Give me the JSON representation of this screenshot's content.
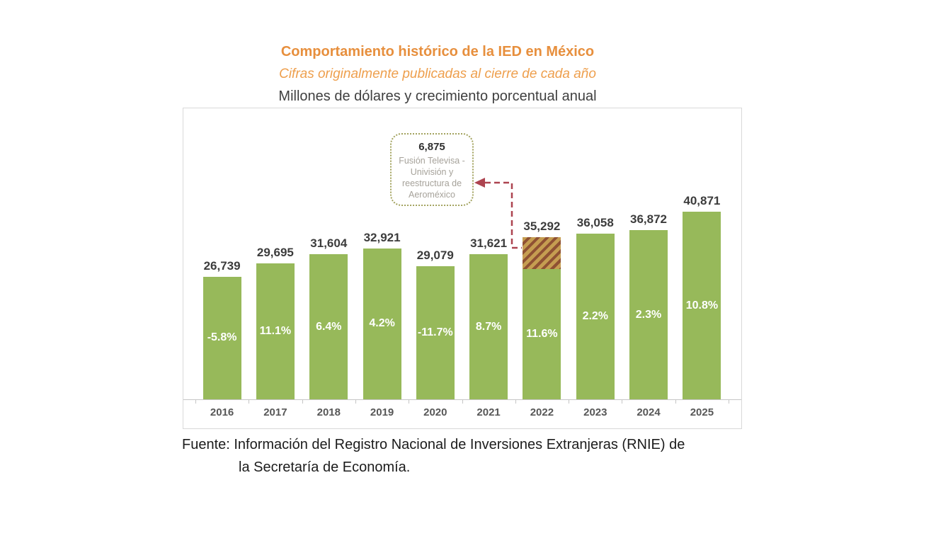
{
  "chart_data": {
    "type": "bar",
    "title": "Comportamiento histórico de la IED en México",
    "subtitle": "Cifras originalmente publicadas al cierre de cada año",
    "units": "Millones de dólares y crecimiento porcentual anual",
    "categories": [
      "2016",
      "2017",
      "2018",
      "2019",
      "2020",
      "2021",
      "2022",
      "2023",
      "2024",
      "2025"
    ],
    "values": [
      26739,
      29695,
      31604,
      32921,
      29079,
      31621,
      35292,
      36058,
      36872,
      40871
    ],
    "value_labels": [
      "26,739",
      "29,695",
      "31,604",
      "32,921",
      "29,079",
      "31,621",
      "35,292",
      "36,058",
      "36,872",
      "40,871"
    ],
    "growth_labels": [
      "-5.8%",
      "11.1%",
      "6.4%",
      "4.2%",
      "-11.7%",
      "8.7%",
      "11.6%",
      "2.2%",
      "2.3%",
      "10.8%"
    ],
    "ylim": [
      0,
      43000
    ],
    "grid": false,
    "legend": "none",
    "annotation": {
      "value": "6,875",
      "value_numeric": 6875,
      "lines": [
        "Fusión Televisa -",
        "Univisión y",
        "reestructura de",
        "Aeroméxico"
      ],
      "target_year": "2022"
    },
    "colors": {
      "bar": "#97b95a",
      "hatch_base": "#c59d51",
      "hatch_stripe": "#8f5133",
      "arrow": "#ad4450",
      "callout_border": "#a3a35f",
      "title_accent": "#e78f3d",
      "subtitle_accent": "#ee9f4d"
    }
  },
  "footer": {
    "source_line1": "Fuente: Información del Registro Nacional de Inversiones Extranjeras (RNIE) de",
    "source_line2": "la Secretaría de Economía."
  }
}
